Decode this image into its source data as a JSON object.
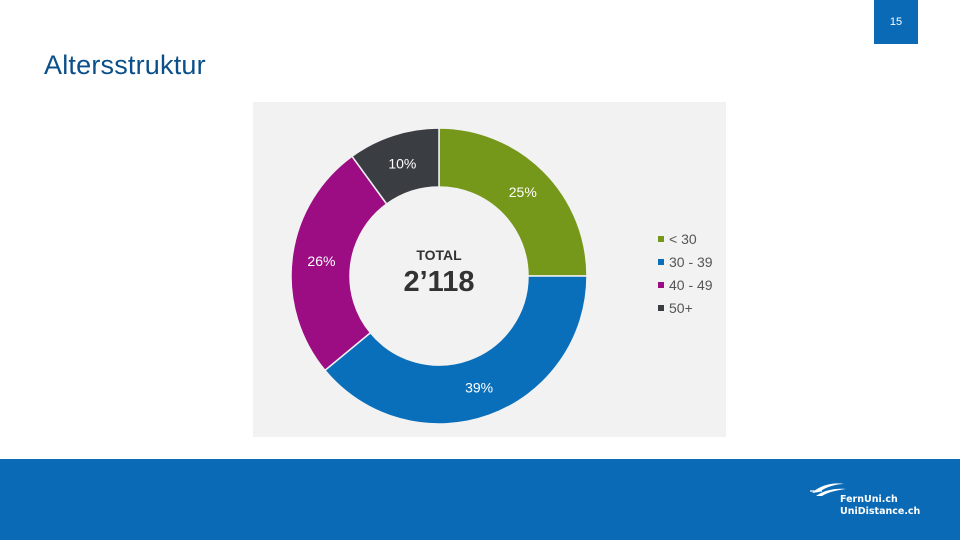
{
  "slide": {
    "page_number": "15",
    "title": "Altersstruktur"
  },
  "chart_data": {
    "type": "pie",
    "donut": true,
    "center_label": "TOTAL",
    "center_value": "2’118",
    "legend_position": "right",
    "slices": [
      {
        "label": "< 30",
        "value": 25,
        "display": "25%",
        "color": "#76981a"
      },
      {
        "label": "30 - 39",
        "value": 39,
        "display": "39%",
        "color": "#0a6fbb"
      },
      {
        "label": "40 - 49",
        "value": 26,
        "display": "26%",
        "color": "#9c0d83"
      },
      {
        "label": "50+",
        "value": 10,
        "display": "10%",
        "color": "#3a3d42"
      }
    ]
  },
  "footer": {
    "logo_line1": "FernUni.ch",
    "logo_line2": "UniDistance.ch",
    "color": "#0a6ab6"
  }
}
